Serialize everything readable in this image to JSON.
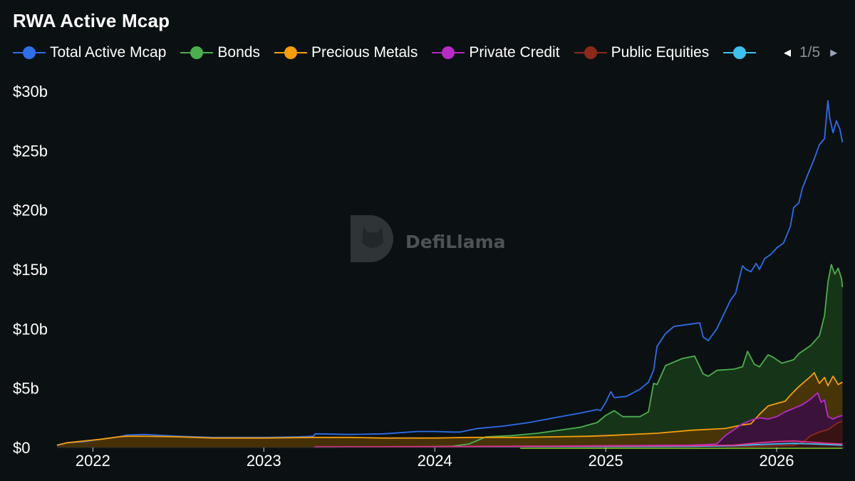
{
  "chart_data": {
    "type": "area",
    "title": "RWA Active Mcap",
    "pagination": "1/5",
    "watermark": "DefiLlama",
    "background": "#0b1012",
    "grid": false,
    "legend_position": "top-left",
    "y_tick_labels": [
      "$0",
      "$5b",
      "$10b",
      "$15b",
      "$20b",
      "$25b",
      "$30b"
    ],
    "y_ticks": [
      0,
      5,
      10,
      15,
      20,
      25,
      30
    ],
    "ylim": [
      0,
      30.6
    ],
    "x_tick_labels": [
      "2022",
      "2023",
      "2024",
      "2025",
      "2026"
    ],
    "x_ticks": [
      2022.0,
      2023.0,
      2024.0,
      2025.0,
      2026.0
    ],
    "xlim": [
      2021.79,
      2026.4
    ],
    "y_unit": "billions USD",
    "series": [
      {
        "name": "Total Active Mcap",
        "color": "#2e6ee8",
        "filled": false,
        "points": [
          [
            2021.79,
            0.2
          ],
          [
            2021.85,
            0.4
          ],
          [
            2021.95,
            0.5
          ],
          [
            2022.05,
            0.7
          ],
          [
            2022.15,
            0.9
          ],
          [
            2022.2,
            1.05
          ],
          [
            2022.3,
            1.1
          ],
          [
            2022.5,
            0.95
          ],
          [
            2022.7,
            0.85
          ],
          [
            2023.0,
            0.85
          ],
          [
            2023.2,
            0.9
          ],
          [
            2023.29,
            0.95
          ],
          [
            2023.3,
            1.15
          ],
          [
            2023.5,
            1.1
          ],
          [
            2023.7,
            1.15
          ],
          [
            2023.9,
            1.35
          ],
          [
            2024.0,
            1.35
          ],
          [
            2024.1,
            1.3
          ],
          [
            2024.15,
            1.3
          ],
          [
            2024.25,
            1.6
          ],
          [
            2024.4,
            1.8
          ],
          [
            2024.55,
            2.1
          ],
          [
            2024.7,
            2.5
          ],
          [
            2024.85,
            2.9
          ],
          [
            2024.95,
            3.2
          ],
          [
            2024.97,
            3.1
          ],
          [
            2025.0,
            3.8
          ],
          [
            2025.03,
            4.7
          ],
          [
            2025.05,
            4.2
          ],
          [
            2025.12,
            4.3
          ],
          [
            2025.2,
            4.9
          ],
          [
            2025.25,
            5.5
          ],
          [
            2025.28,
            6.5
          ],
          [
            2025.3,
            8.5
          ],
          [
            2025.35,
            9.6
          ],
          [
            2025.4,
            10.2
          ],
          [
            2025.5,
            10.4
          ],
          [
            2025.55,
            10.5
          ],
          [
            2025.57,
            9.3
          ],
          [
            2025.6,
            9.0
          ],
          [
            2025.65,
            10.0
          ],
          [
            2025.7,
            11.5
          ],
          [
            2025.73,
            12.4
          ],
          [
            2025.76,
            13.0
          ],
          [
            2025.8,
            15.3
          ],
          [
            2025.82,
            15.0
          ],
          [
            2025.85,
            14.8
          ],
          [
            2025.88,
            15.5
          ],
          [
            2025.9,
            15.0
          ],
          [
            2025.93,
            15.9
          ],
          [
            2025.97,
            16.3
          ],
          [
            2026.0,
            16.8
          ],
          [
            2026.04,
            17.2
          ],
          [
            2026.08,
            18.6
          ],
          [
            2026.1,
            20.2
          ],
          [
            2026.13,
            20.6
          ],
          [
            2026.15,
            21.8
          ],
          [
            2026.18,
            22.9
          ],
          [
            2026.22,
            24.3
          ],
          [
            2026.25,
            25.5
          ],
          [
            2026.28,
            26.0
          ],
          [
            2026.3,
            29.2
          ],
          [
            2026.31,
            27.8
          ],
          [
            2026.33,
            26.5
          ],
          [
            2026.35,
            27.5
          ],
          [
            2026.37,
            26.8
          ],
          [
            2026.385,
            25.7
          ]
        ]
      },
      {
        "name": "Bonds",
        "color": "#4cae4f",
        "filled": true,
        "fill": "#173a1a",
        "points": [
          [
            2023.9,
            0.05
          ],
          [
            2024.1,
            0.1
          ],
          [
            2024.2,
            0.3
          ],
          [
            2024.3,
            0.9
          ],
          [
            2024.45,
            1.0
          ],
          [
            2024.6,
            1.2
          ],
          [
            2024.75,
            1.5
          ],
          [
            2024.85,
            1.7
          ],
          [
            2024.9,
            1.9
          ],
          [
            2024.95,
            2.1
          ],
          [
            2025.0,
            2.7
          ],
          [
            2025.05,
            3.1
          ],
          [
            2025.1,
            2.6
          ],
          [
            2025.2,
            2.6
          ],
          [
            2025.25,
            3.0
          ],
          [
            2025.28,
            5.4
          ],
          [
            2025.3,
            5.3
          ],
          [
            2025.35,
            6.9
          ],
          [
            2025.45,
            7.5
          ],
          [
            2025.52,
            7.7
          ],
          [
            2025.57,
            6.2
          ],
          [
            2025.6,
            6.0
          ],
          [
            2025.65,
            6.5
          ],
          [
            2025.75,
            6.6
          ],
          [
            2025.8,
            6.8
          ],
          [
            2025.83,
            8.1
          ],
          [
            2025.87,
            7.0
          ],
          [
            2025.9,
            6.8
          ],
          [
            2025.95,
            7.8
          ],
          [
            2025.98,
            7.6
          ],
          [
            2026.03,
            7.1
          ],
          [
            2026.1,
            7.4
          ],
          [
            2026.13,
            7.9
          ],
          [
            2026.2,
            8.6
          ],
          [
            2026.25,
            9.4
          ],
          [
            2026.28,
            11.1
          ],
          [
            2026.3,
            13.9
          ],
          [
            2026.32,
            15.4
          ],
          [
            2026.34,
            14.6
          ],
          [
            2026.36,
            15.1
          ],
          [
            2026.38,
            14.2
          ],
          [
            2026.385,
            13.5
          ]
        ]
      },
      {
        "name": "Precious Metals",
        "color": "#f59d0b",
        "filled": true,
        "fill": "#4c3505",
        "points": [
          [
            2021.79,
            0.2
          ],
          [
            2021.85,
            0.4
          ],
          [
            2021.95,
            0.55
          ],
          [
            2022.05,
            0.7
          ],
          [
            2022.15,
            0.9
          ],
          [
            2022.2,
            0.95
          ],
          [
            2022.3,
            0.95
          ],
          [
            2022.5,
            0.9
          ],
          [
            2022.7,
            0.8
          ],
          [
            2023.0,
            0.8
          ],
          [
            2023.3,
            0.85
          ],
          [
            2023.5,
            0.85
          ],
          [
            2023.7,
            0.8
          ],
          [
            2024.0,
            0.8
          ],
          [
            2024.2,
            0.85
          ],
          [
            2024.5,
            0.85
          ],
          [
            2024.7,
            0.9
          ],
          [
            2024.9,
            0.95
          ],
          [
            2025.0,
            1.0
          ],
          [
            2025.3,
            1.2
          ],
          [
            2025.5,
            1.45
          ],
          [
            2025.7,
            1.6
          ],
          [
            2025.8,
            1.9
          ],
          [
            2025.85,
            2.0
          ],
          [
            2025.9,
            2.8
          ],
          [
            2025.95,
            3.5
          ],
          [
            2026.0,
            3.7
          ],
          [
            2026.05,
            3.9
          ],
          [
            2026.08,
            4.4
          ],
          [
            2026.12,
            5.0
          ],
          [
            2026.16,
            5.5
          ],
          [
            2026.2,
            6.0
          ],
          [
            2026.22,
            6.3
          ],
          [
            2026.25,
            5.4
          ],
          [
            2026.28,
            5.9
          ],
          [
            2026.3,
            5.2
          ],
          [
            2026.33,
            6.0
          ],
          [
            2026.36,
            5.3
          ],
          [
            2026.385,
            5.5
          ]
        ]
      },
      {
        "name": "Private Credit",
        "color": "#b62bc4",
        "filled": true,
        "fill": "#3a1040",
        "points": [
          [
            2023.29,
            0.0
          ],
          [
            2023.3,
            0.05
          ],
          [
            2023.7,
            0.05
          ],
          [
            2024.5,
            0.1
          ],
          [
            2025.0,
            0.15
          ],
          [
            2025.5,
            0.2
          ],
          [
            2025.6,
            0.25
          ],
          [
            2025.65,
            0.3
          ],
          [
            2025.7,
            1.0
          ],
          [
            2025.75,
            1.5
          ],
          [
            2025.8,
            2.0
          ],
          [
            2025.85,
            2.3
          ],
          [
            2025.9,
            2.5
          ],
          [
            2025.95,
            2.4
          ],
          [
            2026.0,
            2.6
          ],
          [
            2026.05,
            3.0
          ],
          [
            2026.1,
            3.3
          ],
          [
            2026.15,
            3.6
          ],
          [
            2026.2,
            4.1
          ],
          [
            2026.24,
            4.6
          ],
          [
            2026.26,
            3.8
          ],
          [
            2026.28,
            4.0
          ],
          [
            2026.3,
            2.6
          ],
          [
            2026.33,
            2.4
          ],
          [
            2026.36,
            2.6
          ],
          [
            2026.385,
            2.7
          ]
        ]
      },
      {
        "name": "Public Equities",
        "color": "#8b2a1a",
        "filled": true,
        "fill": "#3a1410",
        "points": [
          [
            2025.7,
            0.0
          ],
          [
            2025.8,
            0.05
          ],
          [
            2025.9,
            0.1
          ],
          [
            2026.0,
            0.15
          ],
          [
            2026.1,
            0.2
          ],
          [
            2026.15,
            0.4
          ],
          [
            2026.2,
            1.0
          ],
          [
            2026.25,
            1.3
          ],
          [
            2026.3,
            1.5
          ],
          [
            2026.33,
            1.8
          ],
          [
            2026.36,
            2.1
          ],
          [
            2026.385,
            2.2
          ]
        ]
      },
      {
        "name": "",
        "color": "#3fc1ee",
        "filled": false,
        "points": [
          [
            2023.3,
            0.02
          ],
          [
            2024.0,
            0.03
          ],
          [
            2024.5,
            0.05
          ],
          [
            2025.0,
            0.08
          ],
          [
            2025.5,
            0.1
          ],
          [
            2025.75,
            0.15
          ],
          [
            2025.9,
            0.25
          ],
          [
            2026.0,
            0.3
          ],
          [
            2026.1,
            0.35
          ],
          [
            2026.2,
            0.3
          ],
          [
            2026.3,
            0.25
          ],
          [
            2026.385,
            0.2
          ]
        ]
      },
      {
        "name": "",
        "color": "#e0308a",
        "filled": false,
        "points": [
          [
            2023.3,
            0.05
          ],
          [
            2024.0,
            0.08
          ],
          [
            2024.5,
            0.1
          ],
          [
            2025.0,
            0.12
          ],
          [
            2025.5,
            0.15
          ],
          [
            2025.75,
            0.2
          ],
          [
            2025.9,
            0.4
          ],
          [
            2026.0,
            0.5
          ],
          [
            2026.1,
            0.55
          ],
          [
            2026.2,
            0.45
          ],
          [
            2026.3,
            0.35
          ],
          [
            2026.385,
            0.3
          ]
        ]
      },
      {
        "name": "",
        "color": "#8fe31f",
        "filled": false,
        "points": [
          [
            2024.5,
            -0.05
          ],
          [
            2025.0,
            -0.05
          ],
          [
            2025.5,
            -0.05
          ],
          [
            2026.0,
            -0.05
          ],
          [
            2026.385,
            -0.05
          ]
        ]
      }
    ]
  },
  "legend": {
    "items": [
      {
        "label": "Total Active Mcap",
        "color": "#2e6ee8"
      },
      {
        "label": "Bonds",
        "color": "#4cae4f"
      },
      {
        "label": "Precious Metals",
        "color": "#f59d0b"
      },
      {
        "label": "Private Credit",
        "color": "#b62bc4"
      },
      {
        "label": "Public Equities",
        "color": "#8b2a1a"
      },
      {
        "label": "",
        "color": "#3fc1ee"
      }
    ],
    "page": "1/5"
  }
}
